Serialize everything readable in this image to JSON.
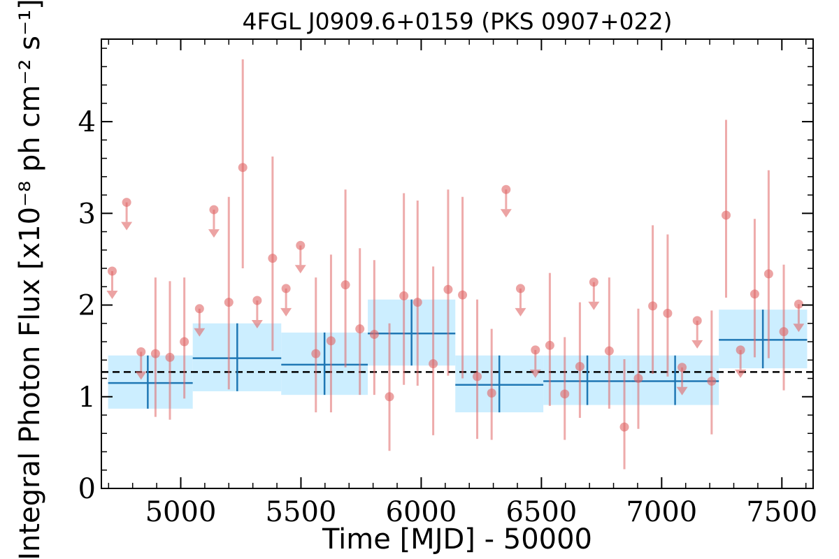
{
  "chart_data": {
    "type": "scatter",
    "title": "4FGL J0909.6+0159 (PKS 0907+022)",
    "xlabel": "Time [MJD] - 50000",
    "ylabel": "Integral Photon Flux [x10⁻⁸ ph cm⁻² s⁻¹]",
    "xlim": [
      4670,
      7630
    ],
    "ylim": [
      0,
      4.9
    ],
    "xticks": [
      "5000",
      "5500",
      "6000",
      "6500",
      "7000",
      "7500"
    ],
    "yticks": [
      "0",
      "1",
      "2",
      "3",
      "4"
    ],
    "grid": false,
    "mean_flux": 1.27,
    "colors": {
      "points": "#e06666",
      "bins": "#1f77b4",
      "band": "#cceeff",
      "mean_line": "#000000"
    },
    "detections": [
      {
        "x": 4895,
        "y": 1.47,
        "lo": 0.78,
        "hi": 2.3
      },
      {
        "x": 4955,
        "y": 1.43,
        "lo": 0.75,
        "hi": 2.26
      },
      {
        "x": 5015,
        "y": 1.6,
        "lo": 0.98,
        "hi": 2.3
      },
      {
        "x": 5200,
        "y": 2.03,
        "lo": 1.08,
        "hi": 3.18
      },
      {
        "x": 5258,
        "y": 3.5,
        "lo": 2.4,
        "hi": 4.68
      },
      {
        "x": 5382,
        "y": 2.51,
        "lo": 1.5,
        "hi": 3.62
      },
      {
        "x": 5562,
        "y": 1.47,
        "lo": 0.83,
        "hi": 2.3
      },
      {
        "x": 5625,
        "y": 1.61,
        "lo": 0.83,
        "hi": 2.55
      },
      {
        "x": 5685,
        "y": 2.22,
        "lo": 1.32,
        "hi": 3.26
      },
      {
        "x": 5745,
        "y": 1.74,
        "lo": 1.02,
        "hi": 2.62
      },
      {
        "x": 5805,
        "y": 1.68,
        "lo": 1.02,
        "hi": 2.49
      },
      {
        "x": 5868,
        "y": 1.0,
        "lo": 0.41,
        "hi": 1.8
      },
      {
        "x": 5928,
        "y": 2.1,
        "lo": 1.13,
        "hi": 3.22
      },
      {
        "x": 5985,
        "y": 2.03,
        "lo": 1.12,
        "hi": 3.14
      },
      {
        "x": 6050,
        "y": 1.36,
        "lo": 0.58,
        "hi": 2.42
      },
      {
        "x": 6112,
        "y": 2.17,
        "lo": 1.23,
        "hi": 3.26
      },
      {
        "x": 6172,
        "y": 2.11,
        "lo": 1.2,
        "hi": 3.18
      },
      {
        "x": 6233,
        "y": 1.22,
        "lo": 0.54,
        "hi": 2.06
      },
      {
        "x": 6293,
        "y": 1.04,
        "lo": 0.53,
        "hi": 1.74
      },
      {
        "x": 6535,
        "y": 1.56,
        "lo": 0.9,
        "hi": 2.35
      },
      {
        "x": 6597,
        "y": 1.03,
        "lo": 0.53,
        "hi": 1.65
      },
      {
        "x": 6660,
        "y": 1.33,
        "lo": 0.77,
        "hi": 2.03
      },
      {
        "x": 6782,
        "y": 1.5,
        "lo": 0.87,
        "hi": 2.3
      },
      {
        "x": 6845,
        "y": 0.67,
        "lo": 0.21,
        "hi": 1.41
      },
      {
        "x": 6903,
        "y": 1.2,
        "lo": 0.65,
        "hi": 1.96
      },
      {
        "x": 6963,
        "y": 1.99,
        "lo": 1.25,
        "hi": 2.87
      },
      {
        "x": 7025,
        "y": 1.91,
        "lo": 1.22,
        "hi": 2.77
      },
      {
        "x": 7208,
        "y": 1.17,
        "lo": 0.59,
        "hi": 1.94
      },
      {
        "x": 7268,
        "y": 2.98,
        "lo": 2.08,
        "hi": 4.02
      },
      {
        "x": 7387,
        "y": 2.12,
        "lo": 1.43,
        "hi": 2.94
      },
      {
        "x": 7445,
        "y": 2.34,
        "lo": 1.42,
        "hi": 3.47
      },
      {
        "x": 7508,
        "y": 1.71,
        "lo": 1.07,
        "hi": 2.44
      }
    ],
    "upper_limits": [
      {
        "x": 4715,
        "y": 2.37
      },
      {
        "x": 4775,
        "y": 3.12
      },
      {
        "x": 4835,
        "y": 1.49
      },
      {
        "x": 5078,
        "y": 1.96
      },
      {
        "x": 5138,
        "y": 3.04
      },
      {
        "x": 5318,
        "y": 2.05
      },
      {
        "x": 5438,
        "y": 2.18
      },
      {
        "x": 5498,
        "y": 2.65
      },
      {
        "x": 6353,
        "y": 3.26
      },
      {
        "x": 6413,
        "y": 2.18
      },
      {
        "x": 6475,
        "y": 1.51
      },
      {
        "x": 6718,
        "y": 2.25
      },
      {
        "x": 7085,
        "y": 1.32
      },
      {
        "x": 7148,
        "y": 1.83
      },
      {
        "x": 7328,
        "y": 1.51
      },
      {
        "x": 7570,
        "y": 2.01
      }
    ],
    "bins": [
      {
        "x0": 4698,
        "x1": 5050,
        "xc": 4863,
        "y": 1.15,
        "lo": 0.87,
        "hi": 1.45
      },
      {
        "x0": 5050,
        "x1": 5418,
        "xc": 5235,
        "y": 1.42,
        "lo": 1.06,
        "hi": 1.8
      },
      {
        "x0": 5418,
        "x1": 5778,
        "xc": 5598,
        "y": 1.35,
        "lo": 1.02,
        "hi": 1.7
      },
      {
        "x0": 5778,
        "x1": 6142,
        "xc": 5960,
        "y": 1.69,
        "lo": 1.34,
        "hi": 2.06
      },
      {
        "x0": 6142,
        "x1": 6508,
        "xc": 6325,
        "y": 1.13,
        "lo": 0.83,
        "hi": 1.45
      },
      {
        "x0": 6508,
        "x1": 6873,
        "xc": 6691,
        "y": 1.17,
        "lo": 0.91,
        "hi": 1.45
      },
      {
        "x0": 6873,
        "x1": 7238,
        "xc": 7056,
        "y": 1.17,
        "lo": 0.91,
        "hi": 1.45
      },
      {
        "x0": 7238,
        "x1": 7605,
        "xc": 7421,
        "y": 1.62,
        "lo": 1.31,
        "hi": 1.95
      }
    ]
  }
}
